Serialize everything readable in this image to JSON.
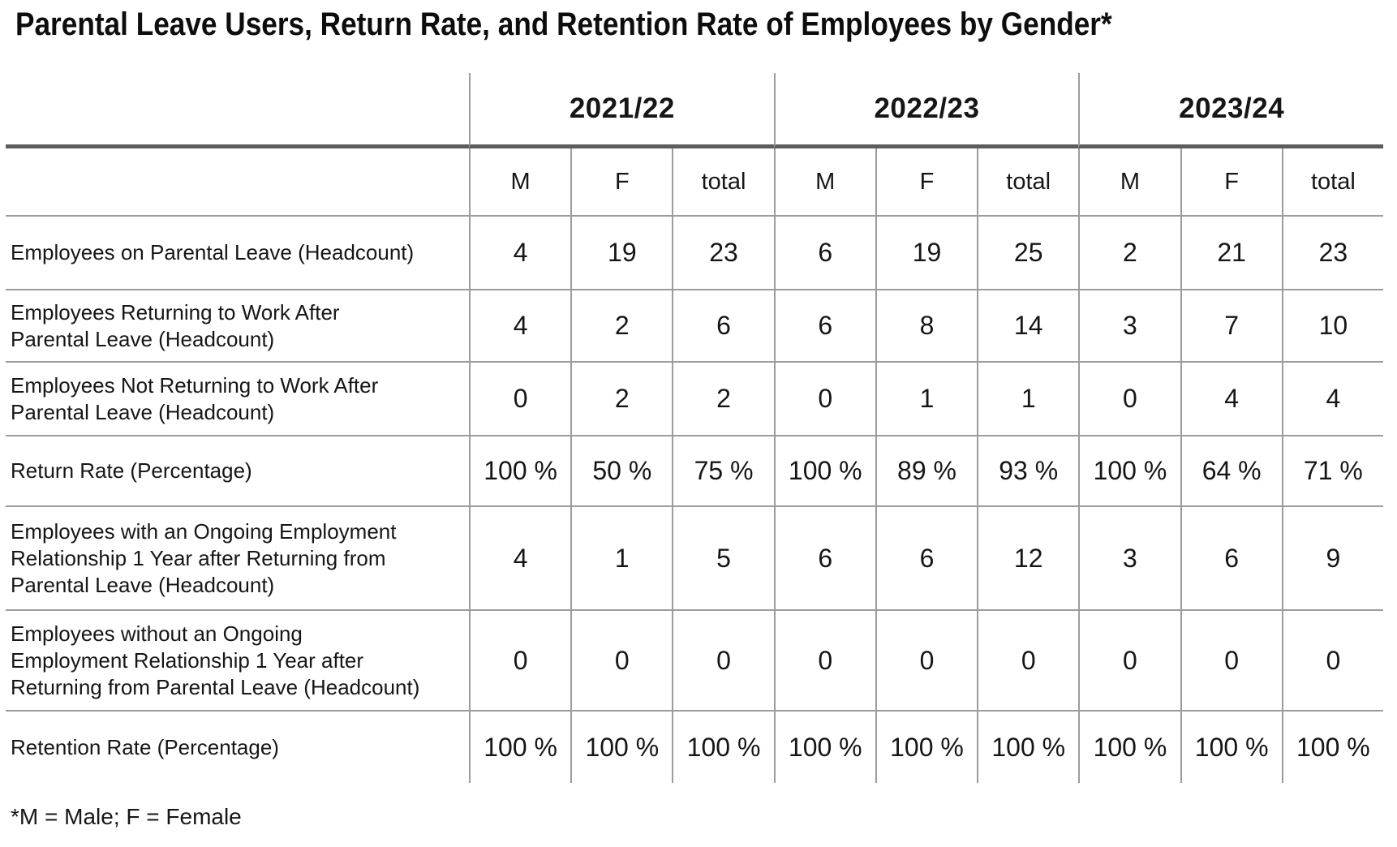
{
  "chart_data": {
    "type": "table",
    "title": "Parental Leave Users, Return Rate, and Retention Rate of Employees by Gender*",
    "footnote": "*M = Male; F = Female",
    "year_groups": [
      "2021/22",
      "2022/23",
      "2023/24"
    ],
    "sub_columns": [
      "M",
      "F",
      "total"
    ],
    "rows": [
      {
        "label": "Employees on Parental Leave (Headcount)",
        "values": [
          "4",
          "19",
          "23",
          "6",
          "19",
          "25",
          "2",
          "21",
          "23"
        ]
      },
      {
        "label": "Employees Returning to Work After Parental Leave (Headcount)",
        "values": [
          "4",
          "2",
          "6",
          "6",
          "8",
          "14",
          "3",
          "7",
          "10"
        ]
      },
      {
        "label": "Employees Not Returning to Work After Parental Leave (Headcount)",
        "values": [
          "0",
          "2",
          "2",
          "0",
          "1",
          "1",
          "0",
          "4",
          "4"
        ]
      },
      {
        "label": "Return Rate (Percentage)",
        "values": [
          "100 %",
          "50 %",
          "75 %",
          "100 %",
          "89 %",
          "93 %",
          "100 %",
          "64 %",
          "71 %"
        ]
      },
      {
        "label": "Employees with an Ongoing Employment Relationship 1 Year after Returning from Parental Leave (Headcount)",
        "values": [
          "4",
          "1",
          "5",
          "6",
          "6",
          "12",
          "3",
          "6",
          "9"
        ]
      },
      {
        "label": "Employees without an Ongoing Employment Relationship 1 Year after Returning from Parental Leave (Headcount)",
        "values": [
          "0",
          "0",
          "0",
          "0",
          "0",
          "0",
          "0",
          "0",
          "0"
        ]
      },
      {
        "label": "Retention Rate (Percentage)",
        "values": [
          "100 %",
          "100 %",
          "100 %",
          "100 %",
          "100 %",
          "100 %",
          "100 %",
          "100 %",
          "100 %"
        ]
      }
    ],
    "colors": {
      "thick_rule": "#5d5d5d",
      "thin_rule": "#9c9c9c",
      "text": "#161616",
      "background": "#ffffff"
    },
    "layout": {
      "grid": "partial rules only",
      "legend_position": "none",
      "header_levels": 2
    }
  }
}
